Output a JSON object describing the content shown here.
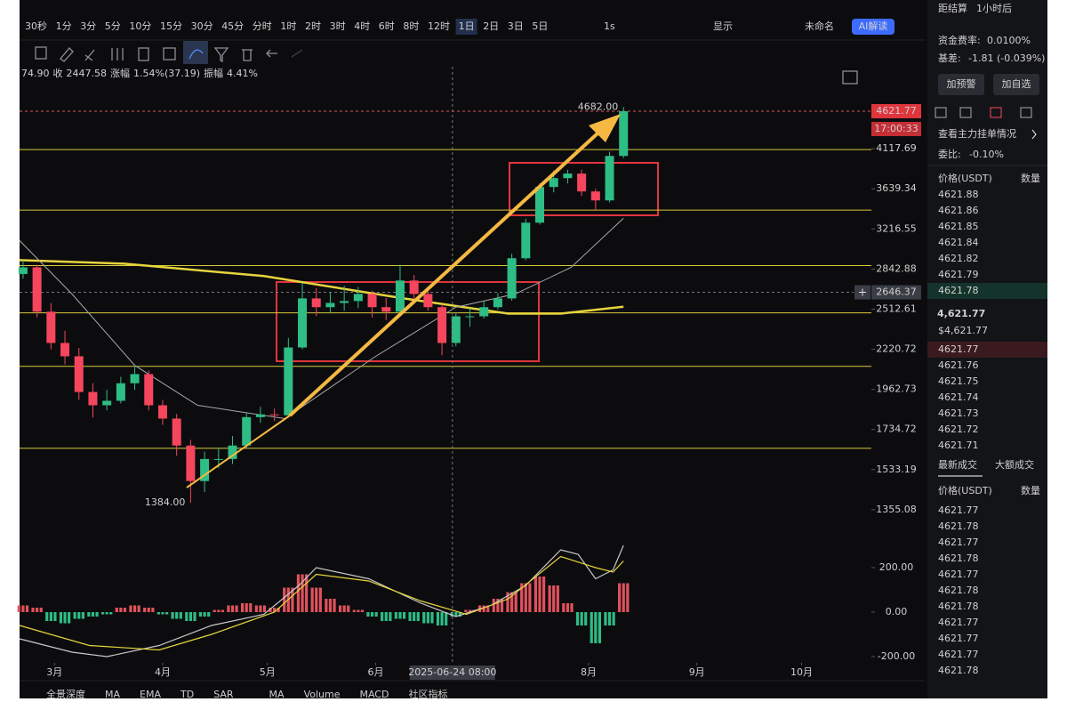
{
  "toolbar": {
    "intervals": [
      "30秒",
      "1分",
      "3分",
      "5分",
      "10分",
      "15分",
      "30分",
      "45分",
      "分时",
      "1时",
      "2时",
      "3时",
      "4时",
      "6时",
      "8时",
      "12时",
      "1日",
      "2日",
      "3日",
      "5日"
    ],
    "active_index": 16,
    "speed": "1s",
    "display": "显示",
    "layout_name": "未命名",
    "ai": "AI解读"
  },
  "info_bar": [
    "74.90",
    "收",
    "2447.58",
    "涨幅",
    "1.54%(37.19)",
    "振幅",
    "4.41%"
  ],
  "chart_data": [
    {
      "type": "candlestick",
      "log": true,
      "ylim": [
        1293,
        5300
      ],
      "xlim": [
        -10,
        234
      ],
      "yticks": [
        4117.69,
        3639.34,
        3216.55,
        2842.88,
        2512.61,
        2220.72,
        1962.73,
        1734.72,
        1533.19,
        1355.08
      ],
      "x": [
        -9,
        -5,
        -1,
        3,
        7,
        11,
        15,
        19,
        23,
        27,
        31,
        35,
        39,
        43,
        47,
        51,
        55,
        59,
        63,
        67,
        71,
        75,
        79,
        83,
        87,
        91,
        95,
        99,
        103,
        107,
        111,
        115,
        119,
        123,
        127,
        131,
        135,
        139,
        143,
        147,
        151,
        155,
        159,
        163
      ],
      "open": [
        2800,
        2858,
        2493,
        2264,
        2173,
        1947,
        1869,
        1895,
        2000,
        2057,
        1869,
        1794,
        1651,
        1480,
        1584,
        1584,
        1651,
        1802,
        1817,
        1812,
        2233,
        2597,
        2528,
        2561,
        2576,
        2633,
        2528,
        2493,
        2744,
        2633,
        2528,
        2264,
        2458,
        2458,
        2528,
        2597,
        2939,
        3279,
        3660,
        3761,
        3814,
        3610,
        3512,
        4027
      ],
      "high": [
        2920,
        2880,
        2560,
        2350,
        2230,
        2000,
        1960,
        2040,
        2110,
        2080,
        1900,
        1820,
        1680,
        1620,
        1640,
        1700,
        1830,
        1860,
        1850,
        2300,
        2720,
        2680,
        2650,
        2700,
        2690,
        2660,
        2600,
        2880,
        2790,
        2660,
        2550,
        2480,
        2520,
        2580,
        2640,
        2980,
        3320,
        3700,
        3850,
        3860,
        3860,
        3640,
        4080,
        4682
      ],
      "low": [
        2760,
        2450,
        2220,
        2120,
        1900,
        1800,
        1840,
        1880,
        1960,
        1840,
        1760,
        1600,
        1384,
        1430,
        1540,
        1560,
        1640,
        1770,
        1780,
        1800,
        2220,
        2460,
        2480,
        2500,
        2520,
        2450,
        2430,
        2480,
        2590,
        2500,
        2180,
        2240,
        2380,
        2440,
        2510,
        2580,
        2920,
        3260,
        3600,
        3700,
        3560,
        3400,
        3490,
        4000
      ],
      "close": [
        2858,
        2493,
        2264,
        2173,
        1947,
        1869,
        1895,
        2000,
        2057,
        1869,
        1794,
        1651,
        1480,
        1584,
        1584,
        1651,
        1802,
        1817,
        1812,
        2233,
        2597,
        2528,
        2561,
        2576,
        2633,
        2528,
        2493,
        2744,
        2633,
        2528,
        2264,
        2458,
        2458,
        2528,
        2597,
        2939,
        3279,
        3660,
        3761,
        3814,
        3610,
        3512,
        4027,
        4621.77
      ],
      "up_color": "#2ebd85",
      "down_color": "#f6465d",
      "series": [
        {
          "color": "#e6d43c",
          "width": 2.5,
          "x": [
            -10,
            20,
            60,
            100,
            130,
            145,
            163
          ],
          "values": [
            2922,
            2890,
            2782,
            2597,
            2478,
            2478,
            2532
          ]
        },
        {
          "color": "#a8a8a8",
          "width": 1,
          "x": [
            -10,
            5,
            23,
            41,
            66,
            92,
            115,
            132,
            148,
            163
          ],
          "values": [
            3103,
            2633,
            2113,
            1869,
            1794,
            2173,
            2528,
            2633,
            2858,
            3324
          ]
        }
      ],
      "levels": {
        "color": "#d9c93a",
        "values": [
          4106,
          3409,
          2873,
          2484,
          2107,
          1637
        ]
      },
      "annotations": [
        {
          "x": 163,
          "value": 4682,
          "label": "4682.00"
        },
        {
          "x": 39,
          "value": 1384,
          "label": "1384.00"
        }
      ],
      "last_price": 4621.77,
      "countdown": "17:00:33",
      "crosshair_y": 2646.37
    },
    {
      "type": "macd",
      "ylim": [
        -228,
        372
      ],
      "xlim": [
        -10,
        234
      ],
      "yticks": [
        {
          "value": 200,
          "label": "200.00"
        },
        {
          "value": 0,
          "label": "0.00"
        },
        {
          "value": -200,
          "label": "-200.00"
        }
      ],
      "xticks": [
        {
          "value": 0,
          "label": "3月"
        },
        {
          "value": 31,
          "label": "4月"
        },
        {
          "value": 61,
          "label": "5月"
        },
        {
          "value": 92,
          "label": "6月"
        },
        {
          "value": 153,
          "label": "8月"
        },
        {
          "value": 184,
          "label": "9月"
        },
        {
          "value": 214,
          "label": "10月"
        }
      ],
      "histogram": [
        30,
        20,
        -40,
        -50,
        -30,
        -20,
        -10,
        20,
        30,
        20,
        -10,
        -30,
        -40,
        -20,
        10,
        30,
        40,
        30,
        20,
        110,
        170,
        110,
        60,
        30,
        10,
        -20,
        -40,
        -30,
        -40,
        -50,
        -60,
        -20,
        10,
        30,
        60,
        90,
        130,
        160,
        120,
        40,
        -60,
        -140,
        -60,
        130
      ],
      "pos_color": "#e0525c",
      "neg_color": "#2ebd85",
      "series": [
        {
          "color": "#c8c8c8",
          "x": [
            -10,
            5,
            15,
            30,
            45,
            60,
            70,
            75,
            90,
            105,
            115,
            125,
            135,
            145,
            150,
            155,
            160,
            163
          ],
          "values": [
            -120,
            -180,
            -200,
            -150,
            -60,
            -10,
            120,
            200,
            150,
            40,
            -20,
            30,
            120,
            280,
            260,
            150,
            190,
            300
          ]
        },
        {
          "color": "#e6d43c",
          "x": [
            -10,
            10,
            30,
            45,
            63,
            75,
            90,
            105,
            118,
            130,
            145,
            155,
            160,
            163
          ],
          "values": [
            -60,
            -150,
            -170,
            -100,
            0,
            170,
            140,
            50,
            -10,
            60,
            250,
            200,
            180,
            230
          ]
        }
      ],
      "crosshair_x": {
        "value": 114,
        "label": "2025-06-24 08:00"
      }
    }
  ],
  "bottom_tabs": [
    "全景深度",
    "MA",
    "EMA",
    "TD",
    "SAR",
    "MA",
    "Volume",
    "MACD",
    "社区指标"
  ],
  "side_panel": {
    "settle_label": "距结算",
    "settle_value": "1小时后",
    "funding_label": "资金费率:",
    "funding_value": "0.0100%",
    "basis_label": "基差:",
    "basis_value": "-1.81 (-0.039%)",
    "buttons": [
      "加预警",
      "加自选"
    ],
    "depth_link": "查看主力挂单情况",
    "ratio_label": "委比:",
    "ratio_value": "-0.10%",
    "book_headers": [
      "价格(USDT)",
      "数量"
    ],
    "asks": [
      4621.88,
      4621.86,
      4621.85,
      4621.84,
      4621.82,
      4621.79,
      4621.78
    ],
    "mid_price": "4,621.77",
    "mid_usd": "$4,621.77",
    "bids": [
      4621.77,
      4621.76,
      4621.75,
      4621.74,
      4621.73,
      4621.72,
      4621.71
    ],
    "tabs": [
      "最新成交",
      "大额成交"
    ],
    "trade_headers": [
      "价格(USDT)",
      "数量"
    ],
    "trades": {
      "values": [
        4621.77,
        4621.78,
        4621.77,
        4621.78,
        4621.77,
        4621.78,
        4621.78,
        4621.77,
        4621.77,
        4621.77,
        4621.78
      ],
      "colors": [
        "#2ebd85",
        "#f6465d",
        "#2ebd85",
        "#f6465d",
        "#2ebd85",
        "#f6465d",
        "#f6465d",
        "#2ebd85",
        "#2ebd85",
        "#2ebd85",
        "#f6465d"
      ]
    }
  }
}
